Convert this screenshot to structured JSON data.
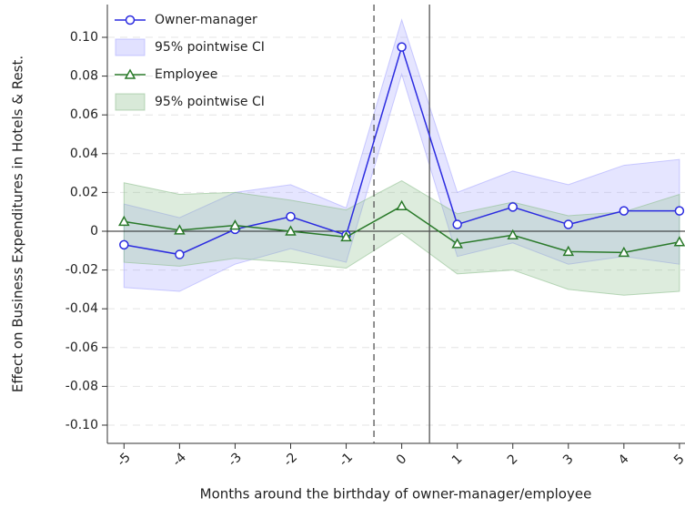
{
  "chart_data": {
    "type": "line",
    "xlabel": "Months around the birthday of owner-manager/employee",
    "ylabel": "Effect on Business Expenditures in Hotels & Rest.",
    "x": [
      -5,
      -4,
      -3,
      -2,
      -1,
      0,
      1,
      2,
      3,
      4,
      5
    ],
    "xlim": [
      -5.3,
      5.1
    ],
    "ylim": [
      -0.1094,
      0.1169
    ],
    "xticks": [
      -5,
      -4,
      -3,
      -2,
      -1,
      0,
      1,
      2,
      3,
      4,
      5
    ],
    "yticks": [
      {
        "value": -0.1,
        "label": "-0.10"
      },
      {
        "value": -0.08,
        "label": "-0.08"
      },
      {
        "value": -0.06,
        "label": "-0.06"
      },
      {
        "value": -0.04,
        "label": "-0.04"
      },
      {
        "value": -0.02,
        "label": "-0.02"
      },
      0,
      {
        "value": 0.02,
        "label": "0.02"
      },
      {
        "value": 0.04,
        "label": "0.04"
      },
      {
        "value": 0.06,
        "label": "0.06"
      },
      {
        "value": 0.08,
        "label": "0.08"
      },
      {
        "value": 0.1,
        "label": "0.10"
      }
    ],
    "grid": true,
    "hline": 0,
    "vlines": [
      {
        "x": -0.5,
        "style": "dashed"
      },
      {
        "x": 0.5,
        "style": "solid"
      }
    ],
    "legend": "upper left",
    "series": [
      {
        "name": "Owner-manager",
        "color": "#2b2be0",
        "marker": "circle",
        "values": [
          -0.007,
          -0.012,
          0.001,
          0.0075,
          -0.002,
          0.095,
          0.0035,
          0.0125,
          0.0035,
          0.0105,
          0.0105
        ],
        "ci": {
          "name": "95% pointwise CI",
          "color": "#aaaaff",
          "upper": [
            0.014,
            0.007,
            0.02,
            0.024,
            0.012,
            0.109,
            0.02,
            0.031,
            0.024,
            0.034,
            0.037
          ],
          "lower": [
            -0.029,
            -0.031,
            -0.017,
            -0.009,
            -0.016,
            0.081,
            -0.013,
            -0.006,
            -0.017,
            -0.013,
            -0.017
          ]
        }
      },
      {
        "name": "Employee",
        "color": "#2a7a2a",
        "marker": "triangle",
        "values": [
          0.005,
          0.0005,
          0.003,
          0.0,
          -0.003,
          0.013,
          -0.0065,
          -0.002,
          -0.0105,
          -0.011,
          -0.0055
        ],
        "ci": {
          "name": "95% pointwise CI",
          "color": "#8fbf8f",
          "upper": [
            0.025,
            0.019,
            0.02,
            0.016,
            0.011,
            0.026,
            0.009,
            0.015,
            0.008,
            0.01,
            0.019
          ],
          "lower": [
            -0.016,
            -0.018,
            -0.014,
            -0.016,
            -0.019,
            -0.001,
            -0.022,
            -0.02,
            -0.03,
            -0.033,
            -0.031
          ]
        }
      }
    ]
  }
}
